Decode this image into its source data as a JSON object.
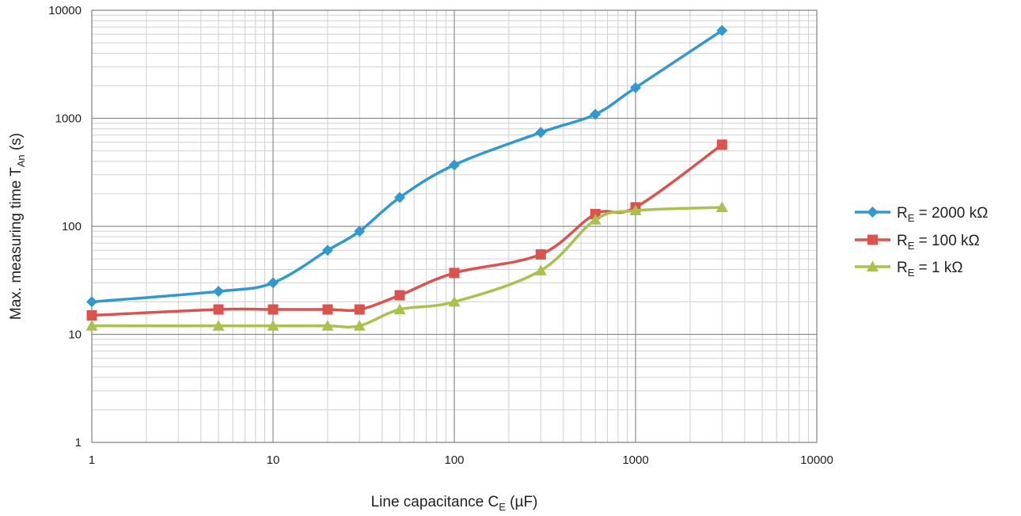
{
  "chart_data": {
    "type": "line",
    "xscale": "log",
    "yscale": "log",
    "xlim": [
      1,
      10000
    ],
    "ylim": [
      1,
      10000
    ],
    "xlabel": {
      "main": "Line  capacitance C",
      "sub": "E",
      "unit": " (µF)"
    },
    "ylabel": {
      "main": "Max. measuring time T",
      "sub": "An",
      "unit": " (s)"
    },
    "x_ticks": [
      "1",
      "10",
      "100",
      "1000",
      "10000"
    ],
    "y_ticks": [
      "1",
      "10",
      "100",
      "1000",
      "10000"
    ],
    "grid": true,
    "legend_position": "right",
    "series": [
      {
        "name": {
          "main": "R",
          "sub": "E",
          "rest": " = 2000 kΩ"
        },
        "color": "#3399CC",
        "marker": "diamond",
        "x": [
          1,
          5,
          10,
          20,
          30,
          50,
          100,
          300,
          600,
          1000,
          3000
        ],
        "y": [
          20,
          25,
          30,
          60,
          90,
          185,
          370,
          740,
          1090,
          1920,
          6500
        ]
      },
      {
        "name": {
          "main": "R",
          "sub": "E",
          "rest": " = 100 kΩ"
        },
        "color": "#D9534F",
        "marker": "square",
        "x": [
          1,
          5,
          10,
          20,
          30,
          50,
          100,
          300,
          600,
          1000,
          3000
        ],
        "y": [
          15,
          17,
          17,
          17,
          17,
          23,
          37,
          55,
          130,
          150,
          570
        ]
      },
      {
        "name": {
          "main": "R",
          "sub": "E",
          "rest": " = 1 kΩ"
        },
        "color": "#A9C24F",
        "marker": "triangle",
        "x": [
          1,
          5,
          10,
          20,
          30,
          50,
          100,
          300,
          600,
          1000,
          3000
        ],
        "y": [
          12,
          12,
          12,
          12,
          12,
          17,
          20,
          39,
          115,
          140,
          150
        ]
      }
    ]
  }
}
